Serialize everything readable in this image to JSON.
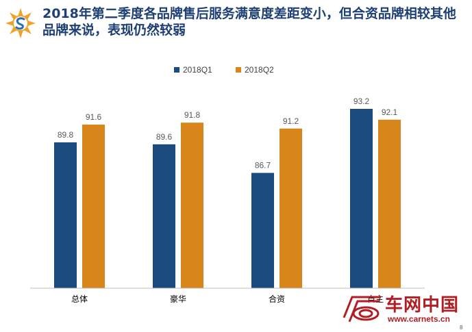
{
  "header": {
    "title": "2018年第二季度各品牌售后服务满意度差距变小，但合资品牌相较其他品牌来说，表现仍然较弱",
    "logo_icon": "company-logo-icon"
  },
  "chart_data": {
    "type": "bar",
    "categories": [
      "总体",
      "豪华",
      "合资",
      "自主"
    ],
    "series": [
      {
        "name": "2018Q1",
        "values": [
          89.8,
          89.6,
          86.7,
          93.2
        ],
        "color": "#1a4a7e"
      },
      {
        "name": "2018Q2",
        "values": [
          91.6,
          91.8,
          91.2,
          92.1
        ],
        "color": "#d8861c"
      }
    ],
    "title": "",
    "xlabel": "",
    "ylabel": "",
    "ylim": [
      75,
      95
    ],
    "grid": false,
    "legend_position": "top-center",
    "data_labels": true
  },
  "watermark": {
    "name": "车网中国",
    "url": "www.carnets.cn",
    "logo_icon": "carnets-logo-icon"
  },
  "page_number": "8"
}
